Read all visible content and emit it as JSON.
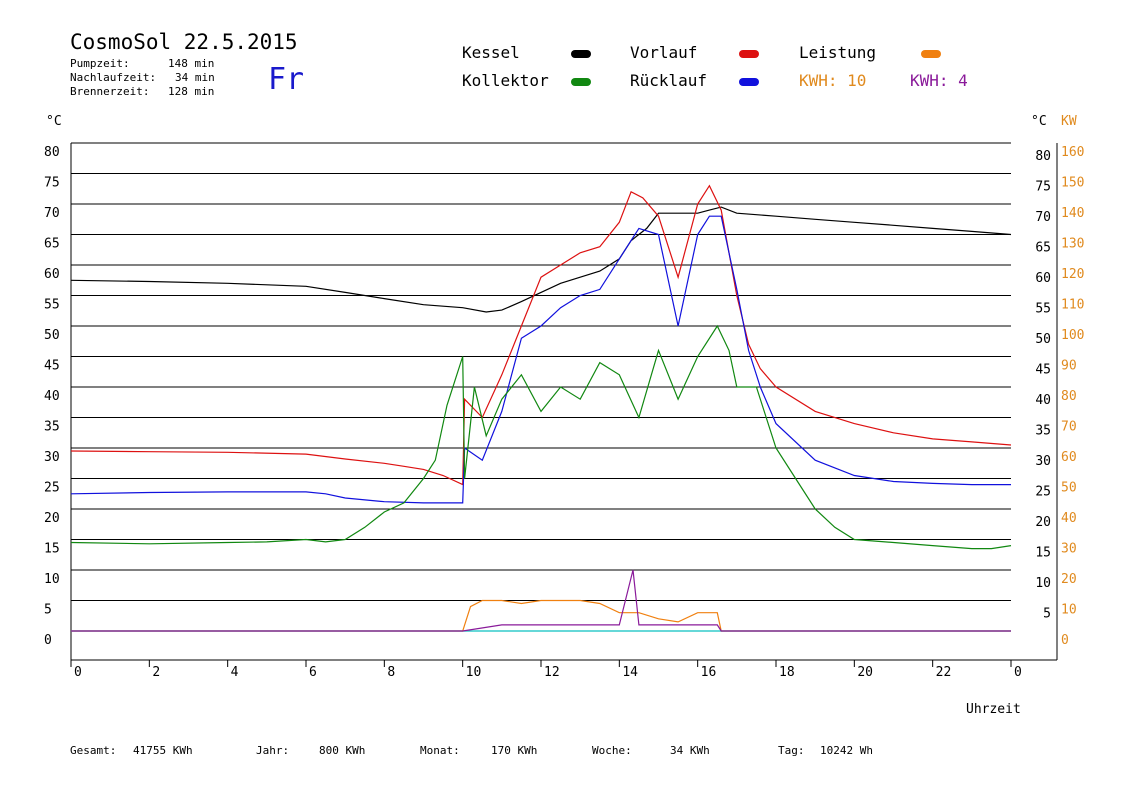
{
  "header": {
    "title": "CosmoSol 22.5.2015",
    "day": "Fr",
    "stats": [
      {
        "label": "Pumpzeit:",
        "value": "148 min"
      },
      {
        "label": "Nachlaufzeit:",
        "value": "34 min"
      },
      {
        "label": "Brennerzeit:",
        "value": "128 min"
      }
    ]
  },
  "legend": [
    {
      "name": "Kessel",
      "color": "#000000"
    },
    {
      "name": "Vorlauf",
      "color": "#dd1111"
    },
    {
      "name": "Leistung",
      "color": "#f08010"
    },
    {
      "name": "Kollektor",
      "color": "#118811"
    },
    {
      "name": "Rücklauf",
      "color": "#1111dd"
    }
  ],
  "kwh": [
    {
      "label": "KWH: 10",
      "color": "#e08a1e"
    },
    {
      "label": "KWH: 4",
      "color": "#8a1a9a"
    }
  ],
  "axes": {
    "left_unit": "°C",
    "right_unit_temp": "°C",
    "right_unit_power": "KW",
    "x_label": "Uhrzeit"
  },
  "footer": [
    {
      "label": "Gesamt:",
      "value": "41755 KWh"
    },
    {
      "label": "Jahr:",
      "value": "800 KWh"
    },
    {
      "label": "Monat:",
      "value": "170 KWh"
    },
    {
      "label": "Woche:",
      "value": "34 KWh"
    },
    {
      "label": "Tag:",
      "value": "10242 Wh"
    }
  ],
  "chart_data": {
    "type": "line",
    "x_range": [
      0,
      24
    ],
    "x_ticks": [
      "0",
      "2",
      "4",
      "6",
      "8",
      "10",
      "12",
      "14",
      "16",
      "18",
      "20",
      "22",
      "0"
    ],
    "y_range": [
      0,
      80
    ],
    "y_ticks_left": [
      "80",
      "75",
      "70",
      "65",
      "60",
      "55",
      "50",
      "45",
      "40",
      "35",
      "30",
      "25",
      "20",
      "15",
      "10",
      "5",
      "0"
    ],
    "y_ticks_right_temp": [
      "80",
      "75",
      "70",
      "65",
      "60",
      "55",
      "50",
      "45",
      "40",
      "35",
      "30",
      "25",
      "20",
      "15",
      "10",
      "5"
    ],
    "y_ticks_right_power": [
      "160",
      "150",
      "140",
      "130",
      "120",
      "110",
      "100",
      "90",
      "80",
      "70",
      "60",
      "50",
      "40",
      "30",
      "20",
      "10",
      "0"
    ],
    "grid": true,
    "series": [
      {
        "name": "Kessel",
        "color": "#000000",
        "x": [
          0,
          2,
          4,
          6,
          7,
          8,
          9,
          10,
          10.6,
          11,
          11.5,
          12,
          12.5,
          13,
          13.5,
          14,
          14.3,
          14.7,
          15,
          15.5,
          16,
          16.3,
          16.6,
          17,
          18,
          19,
          20,
          21,
          22,
          23,
          24
        ],
        "y": [
          57.5,
          57.3,
          57,
          56.5,
          55.5,
          54.5,
          53.5,
          53,
          52.3,
          52.6,
          54,
          55.5,
          57,
          58,
          59,
          61,
          64,
          66,
          68.5,
          68.5,
          68.5,
          69,
          69.5,
          68.5,
          68,
          67.5,
          67,
          66.5,
          66,
          65.5,
          65
        ]
      },
      {
        "name": "Vorlauf",
        "color": "#dd1111",
        "x": [
          0,
          2,
          4,
          6,
          7,
          8,
          8.5,
          9,
          9.5,
          10,
          10.05,
          10.5,
          11,
          11.5,
          12,
          12.5,
          13,
          13.5,
          14,
          14.3,
          14.6,
          15,
          15.5,
          16,
          16.3,
          16.6,
          17,
          17.3,
          17.6,
          18,
          19,
          20,
          21,
          22,
          23,
          24
        ],
        "y": [
          29.5,
          29.4,
          29.3,
          29,
          28.2,
          27.5,
          27,
          26.5,
          25.5,
          24,
          38,
          35,
          42,
          50,
          58,
          60,
          62,
          63,
          67,
          72,
          71,
          68,
          58,
          70,
          73,
          69,
          55,
          47,
          43,
          40,
          36,
          34,
          32.5,
          31.5,
          31,
          30.5
        ]
      },
      {
        "name": "Rücklauf",
        "color": "#1111dd",
        "x": [
          0,
          2,
          4,
          5,
          6,
          6.5,
          7,
          8,
          9,
          10,
          10.05,
          10.5,
          11,
          11.5,
          12,
          12.5,
          13,
          13.5,
          14,
          14.5,
          15,
          15.5,
          16,
          16.3,
          16.6,
          17,
          17.3,
          17.6,
          18,
          19,
          20,
          21,
          22,
          23,
          24
        ],
        "y": [
          22.5,
          22.7,
          22.8,
          22.8,
          22.8,
          22.5,
          21.8,
          21.2,
          21,
          21,
          30,
          28,
          36,
          48,
          50,
          53,
          55,
          56,
          61,
          66,
          65,
          50,
          65,
          68,
          68,
          56,
          46,
          40,
          34,
          28,
          25.5,
          24.5,
          24.2,
          24,
          24
        ]
      },
      {
        "name": "Kollektor",
        "color": "#118811",
        "x": [
          0,
          2,
          4,
          5,
          6,
          6.5,
          7,
          7.5,
          8,
          8.5,
          9,
          9.3,
          9.6,
          10,
          10.05,
          10.3,
          10.6,
          11,
          11.5,
          12,
          12.5,
          13,
          13.5,
          14,
          14.5,
          15,
          15.5,
          16,
          16.5,
          16.8,
          17,
          17.5,
          18,
          18.5,
          19,
          19.5,
          20,
          21,
          22,
          23,
          23.5,
          24
        ],
        "y": [
          14.5,
          14.3,
          14.5,
          14.6,
          15,
          14.6,
          15,
          17,
          19.5,
          21,
          25,
          28,
          37,
          45,
          25,
          40,
          32,
          38,
          42,
          36,
          40,
          38,
          44,
          42,
          35,
          46,
          38,
          45,
          50,
          46,
          40,
          40,
          30,
          25,
          20,
          17,
          15,
          14.5,
          14,
          13.5,
          13.5,
          14
        ]
      },
      {
        "name": "Leistung",
        "color": "#f08010",
        "x": [
          0,
          10,
          10.2,
          10.5,
          11,
          11.5,
          12,
          12.5,
          13,
          13.5,
          14,
          14.5,
          15,
          15.5,
          16,
          16.5,
          16.6,
          17,
          24
        ],
        "y": [
          0,
          0,
          4,
          5,
          5,
          4.5,
          5,
          5,
          5,
          4.5,
          3,
          3,
          2,
          1.5,
          3,
          3,
          0,
          0,
          0
        ]
      },
      {
        "name": "",
        "color": "#8a1a9a",
        "x": [
          0,
          10,
          11,
          12,
          13,
          14,
          14.35,
          14.5,
          15,
          15.5,
          16,
          16.5,
          16.6,
          24
        ],
        "y": [
          0,
          0,
          1,
          1,
          1,
          1,
          10,
          1,
          1,
          1,
          1,
          1,
          0,
          0
        ]
      }
    ]
  }
}
